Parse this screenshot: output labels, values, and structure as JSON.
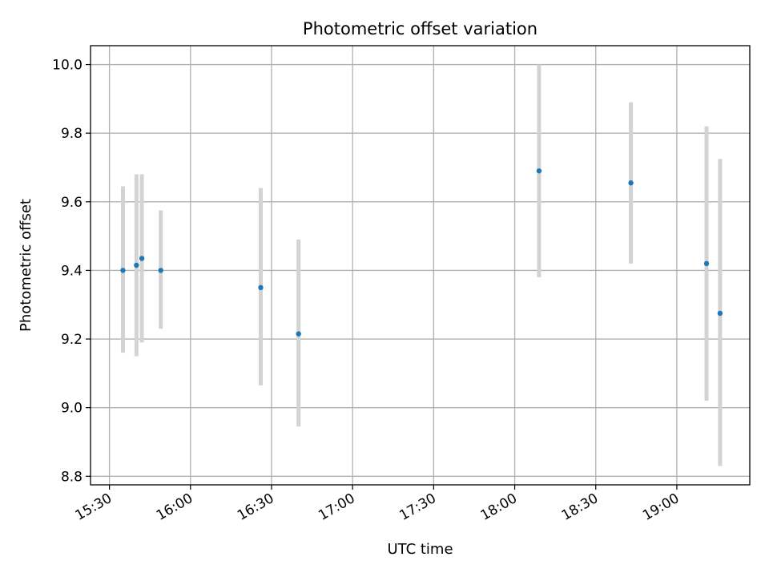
{
  "chart_data": {
    "type": "scatter",
    "title": "Photometric offset variation",
    "xlabel": "UTC time",
    "ylabel": "Photometric offset",
    "x_tick_labels": [
      "15:30",
      "16:00",
      "16:30",
      "17:00",
      "17:30",
      "18:00",
      "18:30",
      "19:00"
    ],
    "y_tick_labels": [
      "8.8",
      "9.0",
      "9.2",
      "9.4",
      "9.6",
      "9.8",
      "10.0"
    ],
    "y_ticks": [
      8.8,
      9.0,
      9.2,
      9.4,
      9.6,
      9.8,
      10.0
    ],
    "xlim": [
      "15:23",
      "19:27"
    ],
    "ylim": [
      8.775,
      10.055
    ],
    "grid": true,
    "colors": {
      "marker": "#1f77b4",
      "errorbar": "#d3d3d3",
      "grid": "#b0b0b0"
    },
    "points": [
      {
        "x": "15:35",
        "y": 9.4,
        "yerr_low": 9.16,
        "yerr_high": 9.645
      },
      {
        "x": "15:40",
        "y": 9.415,
        "yerr_low": 9.15,
        "yerr_high": 9.68
      },
      {
        "x": "15:42",
        "y": 9.435,
        "yerr_low": 9.19,
        "yerr_high": 9.68
      },
      {
        "x": "15:49",
        "y": 9.4,
        "yerr_low": 9.23,
        "yerr_high": 9.575
      },
      {
        "x": "16:26",
        "y": 9.35,
        "yerr_low": 9.065,
        "yerr_high": 9.64
      },
      {
        "x": "16:40",
        "y": 9.215,
        "yerr_low": 8.945,
        "yerr_high": 9.49
      },
      {
        "x": "18:09",
        "y": 9.69,
        "yerr_low": 9.38,
        "yerr_high": 10.0
      },
      {
        "x": "18:43",
        "y": 9.655,
        "yerr_low": 9.42,
        "yerr_high": 9.89
      },
      {
        "x": "19:11",
        "y": 9.42,
        "yerr_low": 9.02,
        "yerr_high": 9.82
      },
      {
        "x": "19:16",
        "y": 9.275,
        "yerr_low": 8.83,
        "yerr_high": 9.725
      }
    ]
  }
}
